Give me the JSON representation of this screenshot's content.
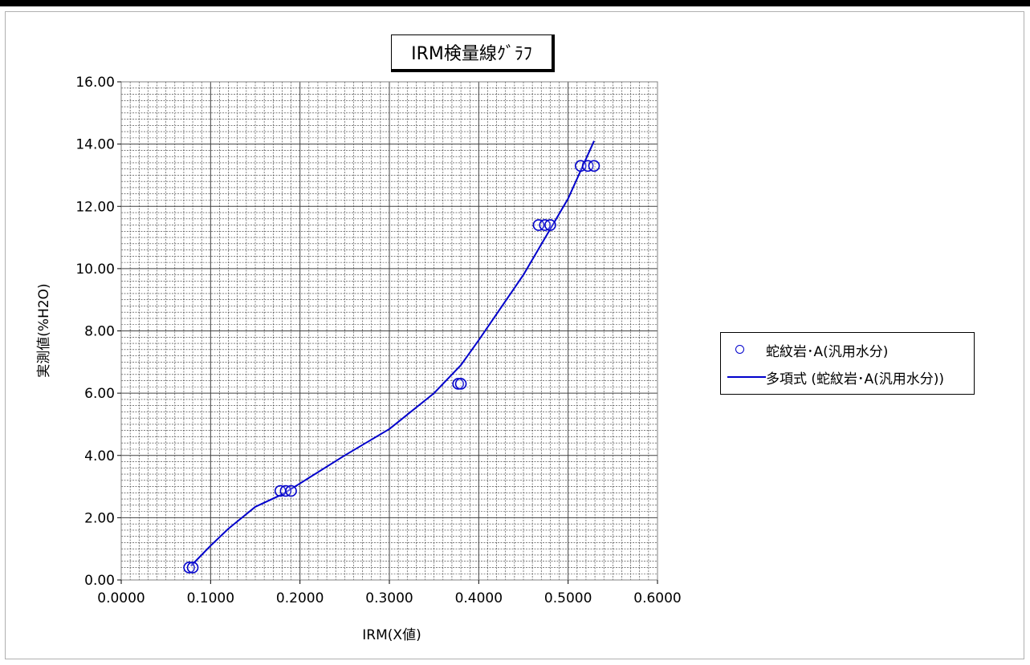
{
  "chart_data": {
    "type": "scatter",
    "title": "IRM検量線ｸﾞﾗﾌ",
    "xlabel": "IRM(X値)",
    "ylabel": "実測値(%H2O)",
    "xlim": [
      0,
      0.6
    ],
    "ylim": [
      0,
      16
    ],
    "x_ticks": [
      "0.0000",
      "0.1000",
      "0.2000",
      "0.3000",
      "0.4000",
      "0.5000",
      "0.6000"
    ],
    "y_ticks": [
      "0.00",
      "2.00",
      "4.00",
      "6.00",
      "8.00",
      "10.00",
      "12.00",
      "14.00",
      "16.00"
    ],
    "grid": true,
    "legend_position": "right",
    "series": [
      {
        "name": "蛇紋岩･A(汎用水分)",
        "type": "scatter",
        "color": "#0000cc",
        "marker": "circle-open",
        "points": [
          [
            0.076,
            0.4
          ],
          [
            0.08,
            0.4
          ],
          [
            0.178,
            2.86
          ],
          [
            0.184,
            2.86
          ],
          [
            0.19,
            2.86
          ],
          [
            0.377,
            6.3
          ],
          [
            0.38,
            6.3
          ],
          [
            0.467,
            11.4
          ],
          [
            0.474,
            11.4
          ],
          [
            0.48,
            11.4
          ],
          [
            0.514,
            13.3
          ],
          [
            0.522,
            13.3
          ],
          [
            0.529,
            13.3
          ]
        ]
      },
      {
        "name": "多項式 (蛇紋岩･A(汎用水分))",
        "type": "line",
        "color": "#0000cc",
        "points": [
          [
            0.078,
            0.45
          ],
          [
            0.1,
            1.1
          ],
          [
            0.12,
            1.65
          ],
          [
            0.15,
            2.35
          ],
          [
            0.18,
            2.75
          ],
          [
            0.2,
            3.1
          ],
          [
            0.25,
            4.0
          ],
          [
            0.3,
            4.85
          ],
          [
            0.35,
            6.0
          ],
          [
            0.38,
            6.9
          ],
          [
            0.4,
            7.7
          ],
          [
            0.45,
            9.8
          ],
          [
            0.5,
            12.25
          ],
          [
            0.529,
            14.1
          ]
        ]
      }
    ]
  }
}
